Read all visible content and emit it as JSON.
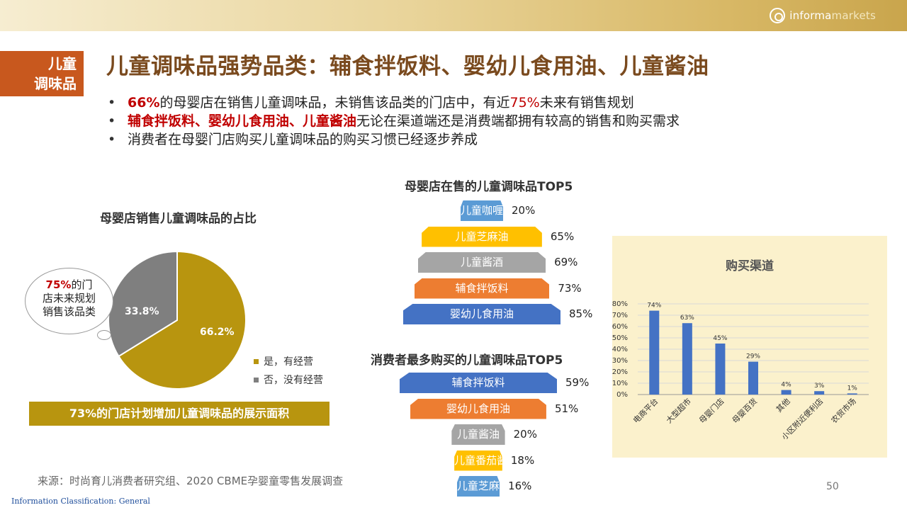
{
  "header": {
    "logo_text_1": "informa",
    "logo_text_2": "markets"
  },
  "side_tag": {
    "line1": "儿童",
    "line2": "调味品"
  },
  "title": "儿童调味品强势品类：辅食拌饭料、婴幼儿食用油、儿童酱油",
  "bullets": {
    "b1_red1": "66%",
    "b1_text1": "的母婴店在销售儿童调味品，未销售该品类的门店中，有近",
    "b1_red2": "75%",
    "b1_text2": "未来有销售规划",
    "b2_red": "辅食拌饭料、婴幼儿食用油、儿童酱油",
    "b2_text": "无论在渠道端还是消费端都拥有较高的销售和购买需求",
    "b3_text": "消费者在母婴门店购买儿童调味品的购买习惯已经逐步养成"
  },
  "callout": {
    "red": "75%",
    "text1": "的门",
    "text2": "店未来规划",
    "text3": "销售该品类"
  },
  "banner": "73%的门店计划增加儿童调味品的展示面积",
  "source": "来源：时尚育儿消费者研究组、2020 CBME孕婴童零售发展调查",
  "page_number": "50",
  "classification": "Information Classification: General",
  "chart_data": [
    {
      "type": "pie",
      "title": "母婴店销售儿童调味品的占比",
      "slices": [
        {
          "name": "是，有经营",
          "value": 66.2,
          "label": "66.2%",
          "color": "#b8950f"
        },
        {
          "name": "否，没有经营",
          "value": 33.8,
          "label": "33.8%",
          "color": "#7f7f7f"
        }
      ],
      "legend": "bottom-right"
    },
    {
      "type": "bar",
      "title": "母婴店在售的儿童调味品TOP5",
      "categories": [
        "儿童咖喱",
        "儿童芝麻油",
        "儿童酱酒",
        "辅食拌饭料",
        "婴幼儿食用油"
      ],
      "values": [
        20,
        65,
        69,
        73,
        85
      ],
      "value_labels": [
        "20%",
        "65%",
        "69%",
        "73%",
        "85%"
      ],
      "colors": [
        "#5b9bd5",
        "#ffc000",
        "#a5a5a5",
        "#ed7d31",
        "#4472c4"
      ]
    },
    {
      "type": "bar",
      "title": "消费者最多购买的儿童调味品TOP5",
      "categories": [
        "辅食拌饭料",
        "婴幼儿食用油",
        "儿童酱油",
        "儿童番茄酱",
        "儿童芝麻酱"
      ],
      "values": [
        59,
        51,
        20,
        18,
        16
      ],
      "value_labels": [
        "59%",
        "51%",
        "20%",
        "18%",
        "16%"
      ],
      "colors": [
        "#4472c4",
        "#ed7d31",
        "#a5a5a5",
        "#ffc000",
        "#5b9bd5"
      ]
    },
    {
      "type": "bar",
      "title": "购买渠道",
      "categories": [
        "电商平台",
        "大型超市",
        "母婴门店",
        "母婴百货",
        "其他",
        "小区附近便利店",
        "农贸市场"
      ],
      "values": [
        74,
        63,
        45,
        29,
        4,
        3,
        1
      ],
      "value_labels": [
        "74%",
        "63%",
        "45%",
        "29%",
        "4%",
        "3%",
        "1%"
      ],
      "ylim": [
        0,
        80
      ],
      "yticks": [
        "0%",
        "10%",
        "20%",
        "30%",
        "40%",
        "50%",
        "60%",
        "70%",
        "80%"
      ],
      "grid": true,
      "bar_color": "#4472c4"
    }
  ]
}
